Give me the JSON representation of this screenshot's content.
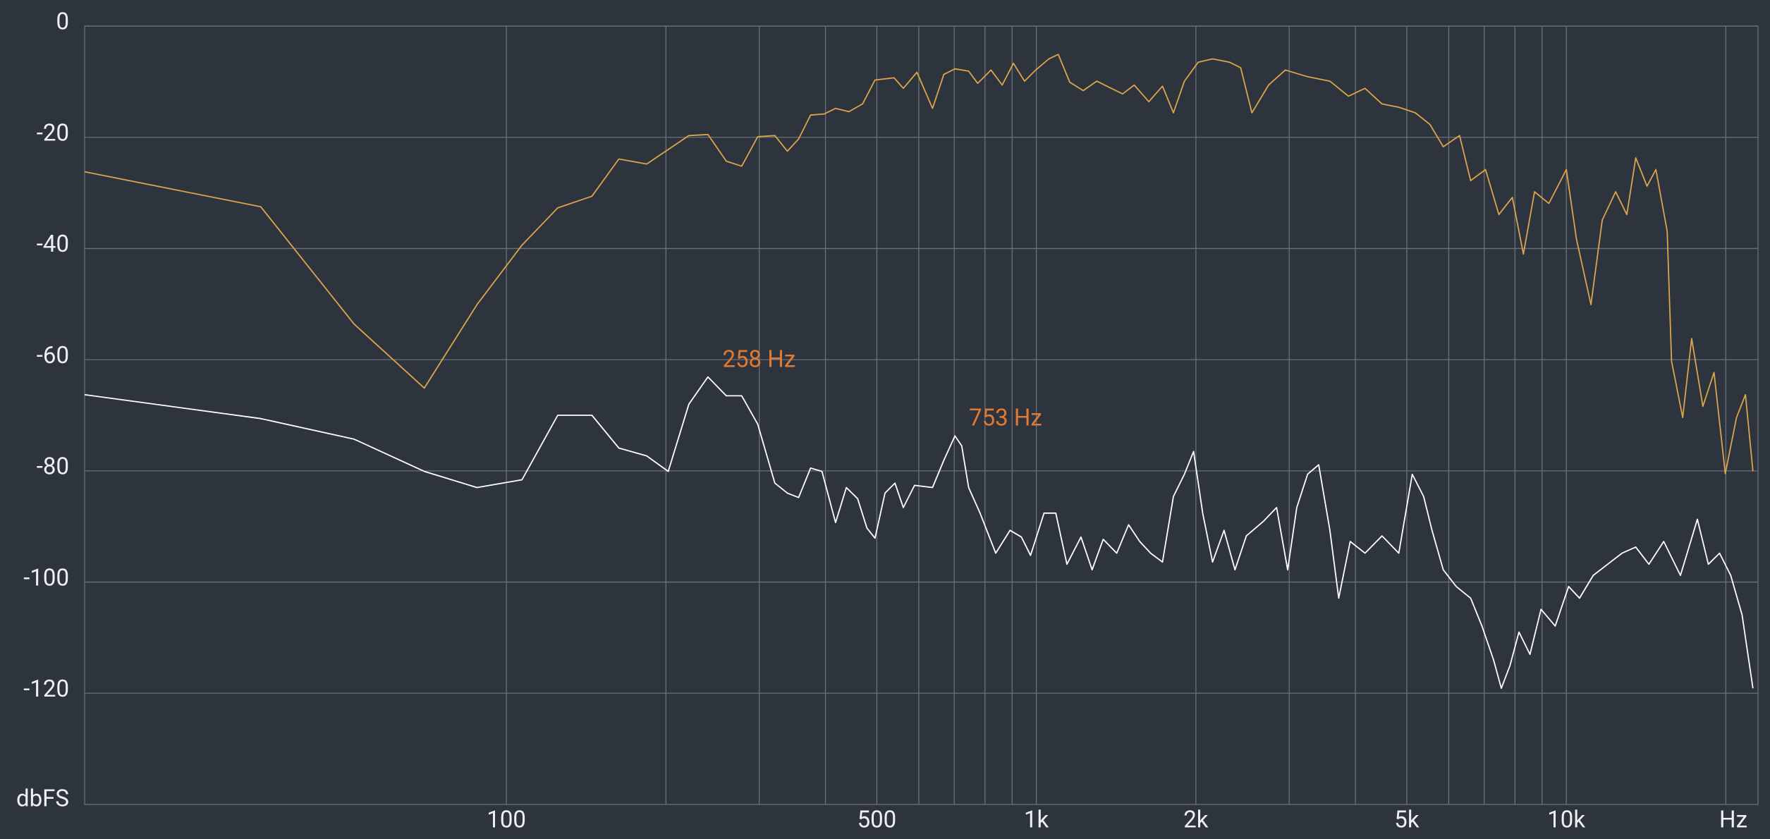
{
  "chart_data": {
    "type": "line",
    "x_label": "Hz",
    "y_label": "dbFS",
    "xscale": "log",
    "grid": true,
    "xlim": [
      16,
      23000
    ],
    "ylim": [
      -140,
      0
    ],
    "yticks": [
      0,
      -20,
      -40,
      -60,
      -80,
      -100,
      -120
    ],
    "xticks": [
      100,
      500,
      {
        "value": 1000,
        "label": "1k"
      },
      {
        "value": 2000,
        "label": "2k"
      },
      {
        "value": 5000,
        "label": "5k"
      },
      {
        "value": 10000,
        "label": "10k"
      }
    ],
    "xminor": [
      200,
      300,
      400,
      600,
      700,
      800,
      900,
      3000,
      4000,
      6000,
      7000,
      8000,
      9000,
      20000
    ],
    "annotations": [
      {
        "text": "258 Hz",
        "x": 258,
        "y": -63,
        "color": "#e07a32"
      },
      {
        "text": "753 Hz",
        "x": 753,
        "y": -73.5,
        "color": "#e07a32"
      }
    ],
    "series": [
      {
        "color": "#dca54a",
        "x": [
          16,
          34.4,
          51.6,
          70,
          88,
          107,
          125,
          145,
          163,
          184,
          221,
          240,
          260,
          278,
          298,
          321,
          339,
          356,
          375,
          398,
          418,
          443,
          470,
          496,
          539,
          561,
          595,
          637,
          669,
          702,
          745,
          775,
          821,
          862,
          905,
          950,
          997,
          1056,
          1100,
          1156,
          1226,
          1300,
          1385,
          1455,
          1530,
          1630,
          1730,
          1814,
          1903,
          2020,
          2150,
          2316,
          2430,
          2551,
          2743,
          2950,
          3250,
          3580,
          3880,
          4170,
          4490,
          4830,
          5190,
          5530,
          5860,
          6290,
          6600,
          7040,
          7460,
          7910,
          8300,
          8710,
          9270,
          10000,
          10450,
          11130,
          11690,
          12390,
          13010,
          13520,
          14200,
          14760,
          15500,
          15800,
          16580,
          17240,
          18100,
          19000,
          19950,
          20950,
          21780,
          22500
        ],
        "values": [
          -26.2,
          -32.5,
          -53.6,
          -65.1,
          -50.1,
          -39.4,
          -32.7,
          -30.6,
          -23.9,
          -24.8,
          -19.7,
          -19.5,
          -24.3,
          -25.2,
          -19.9,
          -19.7,
          -22.5,
          -20.3,
          -16,
          -15.8,
          -14.8,
          -15.4,
          -14,
          -9.7,
          -9.3,
          -11.2,
          -8.3,
          -14.8,
          -8.7,
          -7.7,
          -8.1,
          -10.3,
          -7.9,
          -10.6,
          -6.7,
          -9.9,
          -7.9,
          -5.9,
          -5.1,
          -10.1,
          -11.6,
          -9.9,
          -11.2,
          -12.2,
          -10.6,
          -13.6,
          -10.8,
          -15.6,
          -9.9,
          -6.5,
          -5.9,
          -6.5,
          -7.5,
          -15.6,
          -10.6,
          -7.9,
          -9.1,
          -9.9,
          -12.6,
          -11.2,
          -14,
          -14.6,
          -15.6,
          -17.7,
          -21.7,
          -19.7,
          -27.8,
          -25.8,
          -33.9,
          -30.8,
          -41,
          -29.8,
          -31.9,
          -25.8,
          -38.3,
          -50.1,
          -34.9,
          -29.8,
          -33.9,
          -23.7,
          -28.8,
          -25.8,
          -36.9,
          -60.3,
          -70.4,
          -56.2,
          -68.4,
          -62.3,
          -80.5,
          -70.4,
          -66.3,
          -80.1
        ]
      },
      {
        "color": "#ffffff",
        "x": [
          16,
          34.4,
          51.6,
          70,
          88,
          107,
          125,
          145,
          163,
          184,
          202,
          221,
          240,
          260,
          278,
          298,
          321,
          339,
          356,
          375,
          394,
          418,
          438,
          460,
          479,
          496,
          518,
          541,
          561,
          589,
          637,
          669,
          702,
          723,
          745,
          783,
          838,
          892,
          937,
          975,
          1034,
          1088,
          1142,
          1214,
          1274,
          1337,
          1418,
          1493,
          1567,
          1643,
          1730,
          1814,
          1903,
          1980,
          2060,
          2150,
          2260,
          2370,
          2490,
          2680,
          2840,
          2980,
          3100,
          3250,
          3410,
          3580,
          3720,
          3910,
          4170,
          4490,
          4830,
          5120,
          5380,
          5580,
          5860,
          6200,
          6600,
          6930,
          7290,
          7540,
          7830,
          8140,
          8540,
          8960,
          9530,
          10100,
          10590,
          11240,
          11970,
          12740,
          13520,
          14320,
          15270,
          16420,
          17670,
          18540,
          19460,
          20430,
          21460,
          22500
        ],
        "values": [
          -66.3,
          -70.6,
          -74.3,
          -80.1,
          -83,
          -81.6,
          -70,
          -70,
          -75.9,
          -77.3,
          -80.1,
          -68,
          -63.1,
          -66.5,
          -66.5,
          -71.6,
          -82.2,
          -84,
          -84.8,
          -79.5,
          -80.1,
          -89.3,
          -83,
          -85,
          -90.3,
          -92.1,
          -84,
          -82.2,
          -86.6,
          -82.6,
          -83,
          -78.1,
          -73.7,
          -75.5,
          -83,
          -87.6,
          -94.8,
          -90.7,
          -91.9,
          -95.2,
          -87.6,
          -87.6,
          -96.8,
          -91.9,
          -97.8,
          -92.3,
          -94.8,
          -89.7,
          -92.7,
          -94.8,
          -96.4,
          -84.6,
          -80.6,
          -76.5,
          -87.6,
          -96.4,
          -90.7,
          -97.8,
          -91.7,
          -89.1,
          -86.6,
          -97.8,
          -86.6,
          -80.6,
          -78.9,
          -90.7,
          -102.9,
          -92.7,
          -94.8,
          -91.7,
          -94.8,
          -80.6,
          -84.6,
          -90.7,
          -97.8,
          -100.8,
          -102.9,
          -107.9,
          -114,
          -119.1,
          -115,
          -109,
          -113,
          -104.9,
          -107.9,
          -100.8,
          -102.9,
          -98.8,
          -96.8,
          -94.8,
          -93.7,
          -96.8,
          -92.7,
          -98.8,
          -88.7,
          -96.8,
          -94.8,
          -98.8,
          -105.9,
          -119.1
        ]
      }
    ]
  }
}
